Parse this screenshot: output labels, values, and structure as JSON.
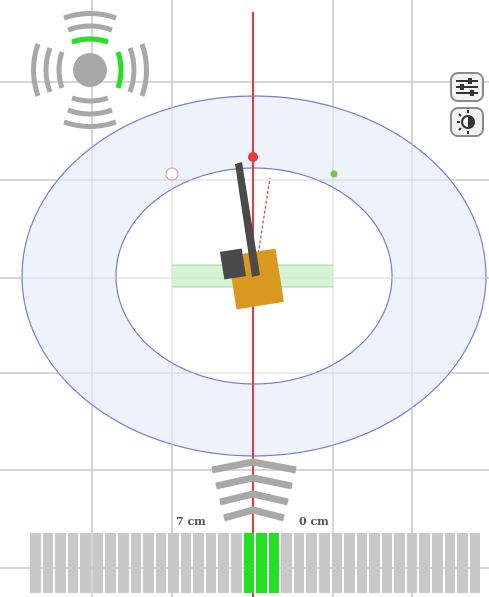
{
  "colors": {
    "background": "#ffffff",
    "grid": "#c8c8c8",
    "guidance_line": "#e83a3a",
    "ring_stroke": "#7a7ad8",
    "ring_fill": "#eef2fb",
    "vehicle_body": "#d9981f",
    "implement": "#4a4a4a",
    "active_green": "#22e022",
    "inactive_gray": "#c8c8c8"
  },
  "guidance": {
    "left_distance": "7 cm",
    "right_distance": "0 cm"
  },
  "compass_icon": "direction-compass-icon",
  "side_buttons": [
    {
      "name": "settings-sliders-button",
      "icon": "sliders-icon"
    },
    {
      "name": "brightness-button",
      "icon": "brightness-icon"
    }
  ],
  "lightbar": {
    "segments_total": 36,
    "active_segments": [
      17,
      18,
      19
    ]
  }
}
